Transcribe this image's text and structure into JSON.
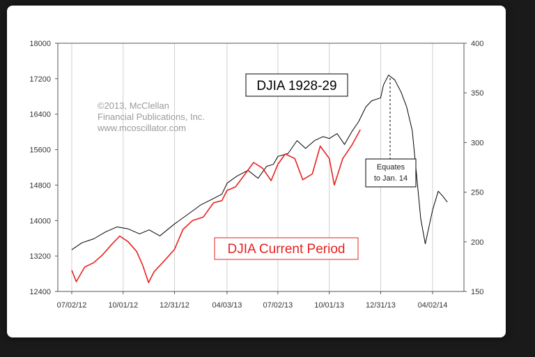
{
  "chart_data": {
    "type": "line",
    "annotations": {
      "copyright": [
        "©2013, McClellan",
        "Financial Publications, Inc.",
        "www.mcoscillator.com"
      ],
      "old_series_label": "DJIA 1928-29",
      "current_series_label": "DJIA Current Period",
      "callout": [
        "Equates",
        "to Jan. 14"
      ]
    },
    "x_ticks": [
      "07/02/12",
      "10/01/12",
      "12/31/12",
      "04/03/13",
      "07/02/13",
      "10/01/13",
      "12/31/13",
      "04/02/14"
    ],
    "left_axis": {
      "ylim": [
        12400,
        18000
      ],
      "ticks": [
        "18000",
        "17200",
        "16400",
        "15600",
        "14800",
        "14000",
        "13200",
        "12400"
      ]
    },
    "right_axis": {
      "ylim": [
        150,
        400
      ],
      "ticks": [
        "400",
        "350",
        "300",
        "250",
        "200",
        "150"
      ]
    },
    "grid": "vertical",
    "series": [
      {
        "name": "DJIA 1928-29",
        "axis": "right",
        "color": "#000000",
        "x": [
          "2012-07-02",
          "2012-07-20",
          "2012-08-10",
          "2012-08-31",
          "2012-09-20",
          "2012-10-10",
          "2012-10-30",
          "2012-11-16",
          "2012-12-05",
          "2012-12-31",
          "2013-01-22",
          "2013-02-15",
          "2013-03-08",
          "2013-03-25",
          "2013-04-03",
          "2013-04-20",
          "2013-05-10",
          "2013-05-28",
          "2013-06-12",
          "2013-06-24",
          "2013-07-02",
          "2013-07-20",
          "2013-08-05",
          "2013-08-20",
          "2013-09-05",
          "2013-09-20",
          "2013-10-01",
          "2013-10-15",
          "2013-10-28",
          "2013-11-10",
          "2013-11-22",
          "2013-12-05",
          "2013-12-15",
          "2013-12-31",
          "2014-01-05",
          "2014-01-14",
          "2014-01-25",
          "2014-02-05",
          "2014-02-15",
          "2014-02-25",
          "2014-03-05",
          "2014-03-12",
          "2014-03-20",
          "2014-04-02",
          "2014-04-12",
          "2014-04-20",
          "2014-04-28"
        ],
        "values": [
          192,
          199,
          203,
          210,
          215,
          213,
          208,
          212,
          206,
          218,
          227,
          237,
          243,
          248,
          259,
          266,
          272,
          264,
          276,
          278,
          286,
          289,
          302,
          294,
          302,
          306,
          304,
          309,
          298,
          311,
          321,
          336,
          342,
          345,
          358,
          368,
          363,
          351,
          336,
          312,
          265,
          223,
          198,
          232,
          251,
          246,
          240
        ]
      },
      {
        "name": "DJIA Current Period",
        "axis": "left",
        "color": "#e8201c",
        "x": [
          "2012-07-02",
          "2012-07-10",
          "2012-07-25",
          "2012-08-10",
          "2012-08-25",
          "2012-09-10",
          "2012-09-25",
          "2012-10-10",
          "2012-10-25",
          "2012-11-05",
          "2012-11-15",
          "2012-11-25",
          "2012-12-10",
          "2012-12-31",
          "2013-01-15",
          "2013-02-01",
          "2013-02-20",
          "2013-03-10",
          "2013-03-25",
          "2013-04-03",
          "2013-04-18",
          "2013-05-05",
          "2013-05-20",
          "2013-06-05",
          "2013-06-20",
          "2013-07-02",
          "2013-07-15",
          "2013-08-01",
          "2013-08-15",
          "2013-09-01",
          "2013-09-15",
          "2013-10-01",
          "2013-10-10",
          "2013-10-25",
          "2013-11-10",
          "2013-11-25"
        ],
        "values": [
          12880,
          12620,
          12950,
          13050,
          13220,
          13450,
          13650,
          13520,
          13300,
          12980,
          12600,
          12850,
          13050,
          13350,
          13800,
          14000,
          14080,
          14400,
          14450,
          14680,
          14760,
          15050,
          15310,
          15180,
          14900,
          15270,
          15500,
          15400,
          14920,
          15050,
          15680,
          15400,
          14800,
          15400,
          15700,
          16050
        ]
      }
    ]
  }
}
